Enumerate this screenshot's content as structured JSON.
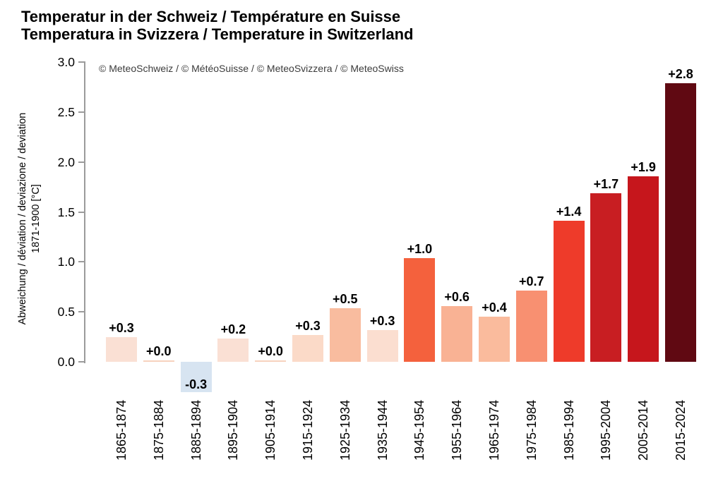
{
  "title": {
    "line1": "Temperatur in der Schweiz / Température en Suisse",
    "line2": "Temperatura in Svizzera / Temperature in Switzerland"
  },
  "copyright": "© MeteoSchweiz / © MétéoSuisse / © MeteoSvizzera / © MeteoSwiss",
  "chart_data": {
    "type": "bar",
    "title": "Temperatur in der Schweiz / Température en Suisse / Temperatura in Svizzera / Temperature in Switzerland",
    "ylabel_line1": "Abweichung / déviation / deviazione / deviation",
    "ylabel_line2": "1871-1900 [°C]",
    "ylim": [
      -0.35,
      3.0
    ],
    "yticks": [
      "0.0",
      "0.5",
      "1.0",
      "1.5",
      "2.0",
      "2.5",
      "3.0"
    ],
    "grid": false,
    "legend": "none",
    "categories": [
      "1865-1874",
      "1875-1884",
      "1885-1894",
      "1895-1904",
      "1905-1914",
      "1915-1924",
      "1925-1934",
      "1935-1944",
      "1945-1954",
      "1955-1964",
      "1965-1974",
      "1975-1984",
      "1985-1994",
      "1995-2004",
      "2005-2014",
      "2015-2024"
    ],
    "values": [
      0.25,
      0.01,
      -0.3,
      0.23,
      0.01,
      0.27,
      0.54,
      0.32,
      1.04,
      0.56,
      0.45,
      0.71,
      1.41,
      1.69,
      1.86,
      2.79
    ],
    "labels": [
      "+0.3",
      "+0.0",
      "-0.3",
      "+0.2",
      "+0.0",
      "+0.3",
      "+0.5",
      "+0.3",
      "+1.0",
      "+0.6",
      "+0.4",
      "+0.7",
      "+1.4",
      "+1.7",
      "+1.9",
      "+2.8"
    ],
    "bar_colors": [
      "#FAE0D4",
      "#F7D2BE",
      "#D7E4F1",
      "#FAE0D4",
      "#F7D2BE",
      "#FBDAC8",
      "#F9BC9F",
      "#FBDED0",
      "#F4613D",
      "#F9B294",
      "#FABB9D",
      "#F89071",
      "#EE3B2A",
      "#C81E22",
      "#C6161C",
      "#600912"
    ]
  },
  "colors": {
    "background": "#ffffff",
    "axis": "#9b9b9b",
    "text": "#000000",
    "copyright_text": "#3c3c3c",
    "negative_bar": "#D7E4F1",
    "max_bar": "#600912"
  }
}
